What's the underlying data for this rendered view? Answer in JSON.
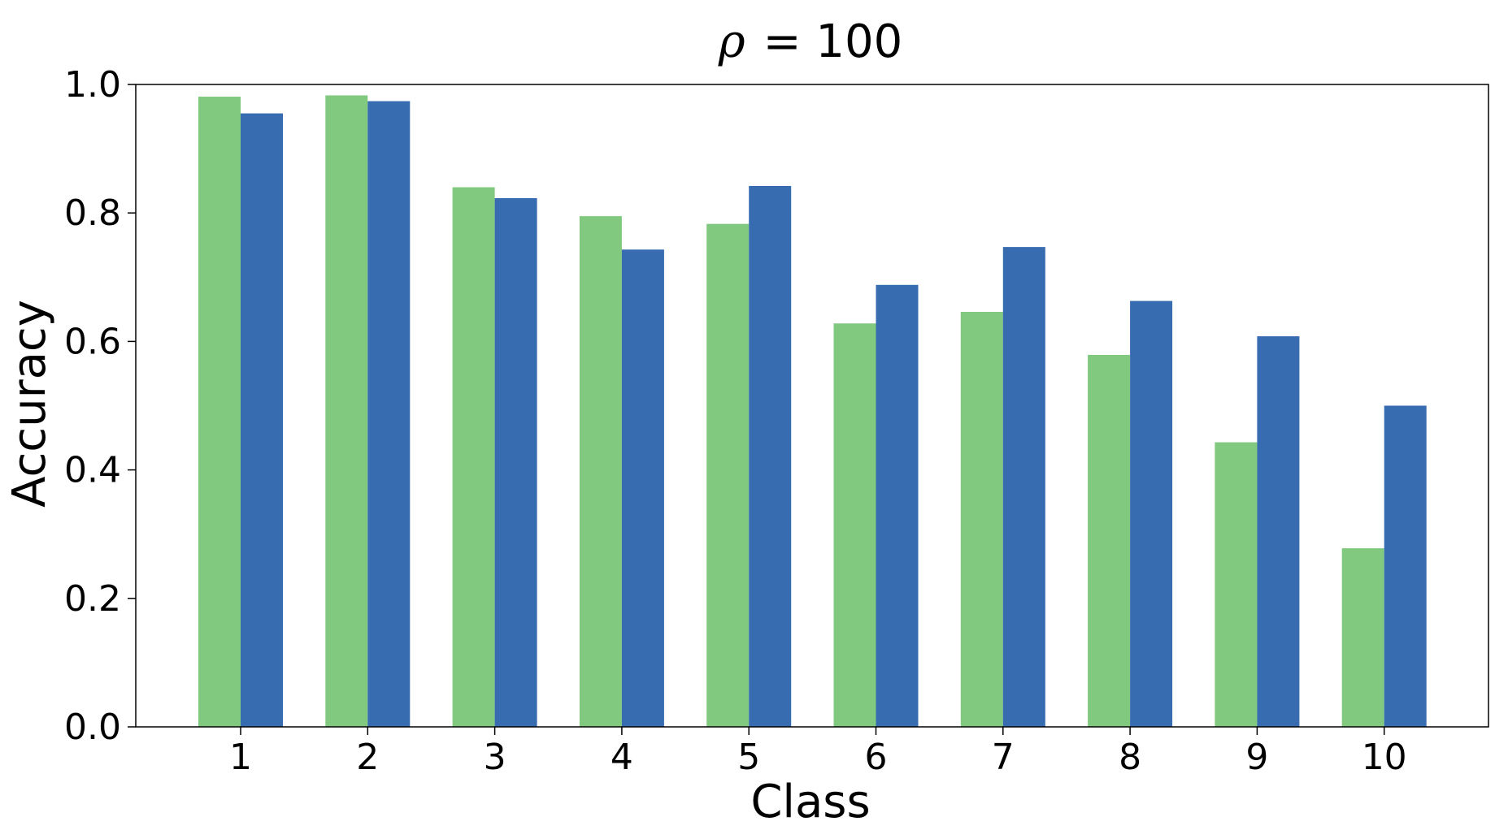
{
  "chart_data": {
    "type": "bar",
    "title": "ρ = 100",
    "title_symbol": "ρ",
    "title_rest": "= 100",
    "xlabel": "Class",
    "ylabel": "Accuracy",
    "categories": [
      "1",
      "2",
      "3",
      "4",
      "5",
      "6",
      "7",
      "8",
      "9",
      "10"
    ],
    "y_ticks": [
      "0.0",
      "0.2",
      "0.4",
      "0.6",
      "0.8",
      "1.0"
    ],
    "ylim": [
      0,
      1.0
    ],
    "grid": false,
    "legend": "none",
    "series": [
      {
        "color": "#80c97f",
        "values": [
          0.981,
          0.983,
          0.84,
          0.795,
          0.783,
          0.628,
          0.646,
          0.579,
          0.443,
          0.278
        ]
      },
      {
        "color": "#386cb0",
        "values": [
          0.955,
          0.974,
          0.823,
          0.743,
          0.842,
          0.688,
          0.747,
          0.663,
          0.608,
          0.5
        ]
      }
    ]
  }
}
